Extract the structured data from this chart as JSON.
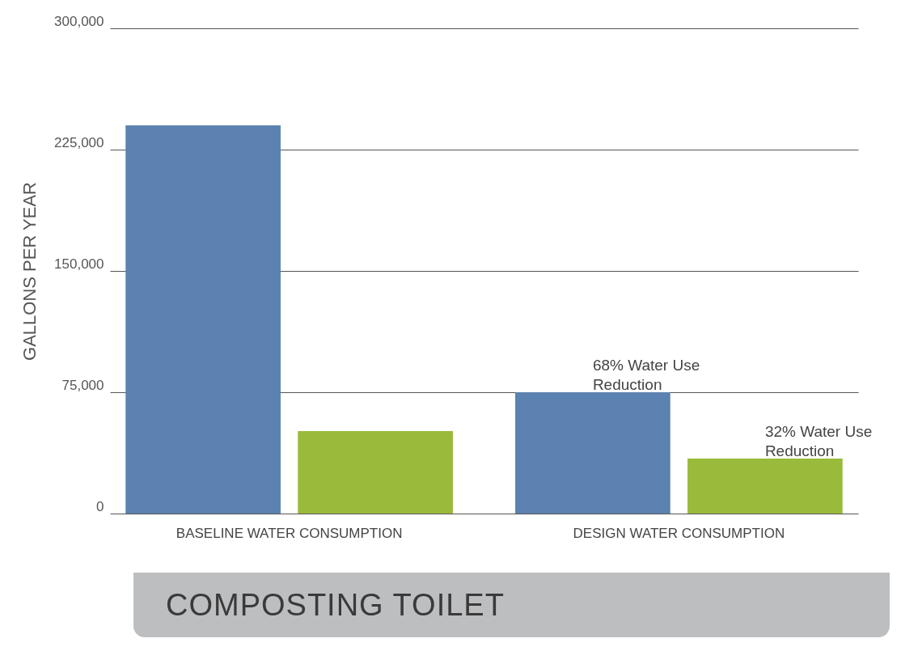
{
  "chart_data": {
    "type": "bar",
    "xlabel": "COMPOSTING TOILET",
    "ylabel": "GALLONS PER YEAR",
    "categories": [
      "BASELINE WATER CONSUMPTION",
      "DESIGN WATER CONSUMPTION"
    ],
    "series": [
      {
        "color": "#5b82b0",
        "values": [
          240000,
          75000
        ]
      },
      {
        "color": "#9aba3c",
        "values": [
          51000,
          34000
        ]
      }
    ],
    "ylim": [
      0,
      300000
    ],
    "yticks": [
      0,
      {
        "value": 75000,
        "label": "75,000"
      },
      {
        "value": 150000,
        "label": "150,000"
      },
      {
        "value": 225000,
        "label": "225,000"
      },
      {
        "value": 300000,
        "label": "300,000"
      }
    ],
    "grid": "y",
    "legend": false,
    "annotations": [
      "68% Water Use Reduction",
      "32% Water Use Reduction"
    ]
  }
}
